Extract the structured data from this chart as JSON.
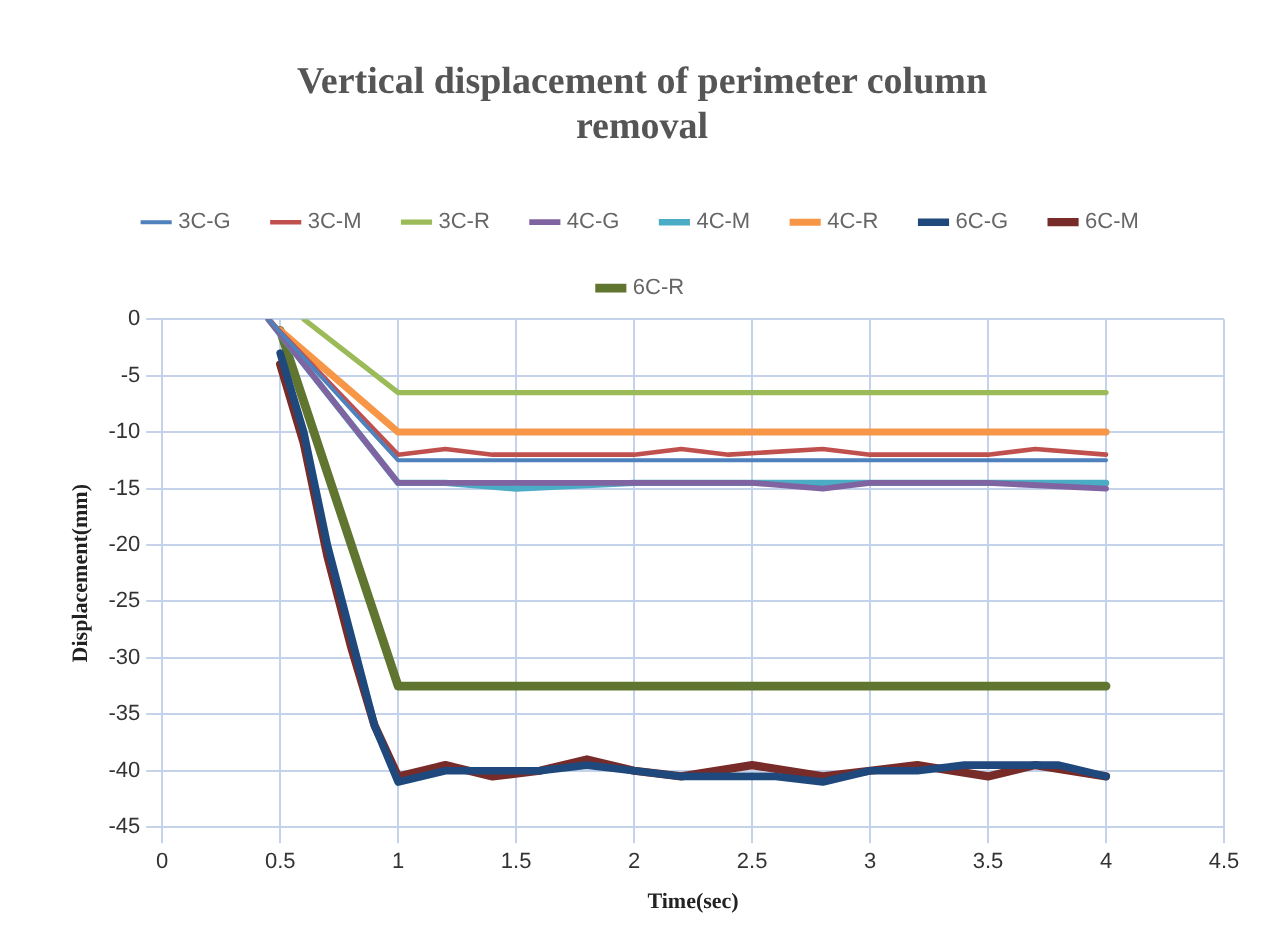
{
  "chart_data": {
    "type": "line",
    "title": "Vertical displacement of perimeter column removal",
    "xlabel": "Time(sec)",
    "ylabel": "Displacement(mm)",
    "xlim": [
      0,
      4.5
    ],
    "xticks": [
      0,
      0.5,
      1,
      1.5,
      2,
      2.5,
      3,
      3.5,
      4,
      4.5
    ],
    "ylim": [
      -45,
      0
    ],
    "yticks": [
      -45,
      -40,
      -35,
      -30,
      -25,
      -20,
      -15,
      -10,
      -5,
      0
    ],
    "grid": true,
    "legend": "top",
    "marker": "none",
    "line_style": "solid",
    "series": [
      {
        "name": "3C-G",
        "color": "#4f81bd",
        "x": [
          0.45,
          1,
          1.4,
          1.8,
          2.2,
          2.6,
          3,
          3.4,
          3.8,
          4
        ],
        "values": [
          0,
          -12.5,
          -12.5,
          -12.5,
          -12.5,
          -12.5,
          -12.5,
          -12.5,
          -12.5,
          -12.5
        ]
      },
      {
        "name": "3C-M",
        "color": "#c0504d",
        "x": [
          0.45,
          1,
          1.2,
          1.4,
          2,
          2.2,
          2.4,
          2.8,
          3,
          3.5,
          3.7,
          4
        ],
        "values": [
          0,
          -12,
          -11.5,
          -12,
          -12,
          -11.5,
          -12,
          -11.5,
          -12,
          -12,
          -11.5,
          -12
        ]
      },
      {
        "name": "3C-R",
        "color": "#9bbb59",
        "x": [
          0.6,
          1,
          2,
          3,
          4
        ],
        "values": [
          0,
          -6.5,
          -6.5,
          -6.5,
          -6.5
        ]
      },
      {
        "name": "4C-G",
        "color": "#8064a2",
        "x": [
          0.45,
          1,
          1.5,
          2,
          2.5,
          2.8,
          3,
          3.5,
          4
        ],
        "values": [
          0,
          -14.5,
          -14.5,
          -14.5,
          -14.5,
          -15,
          -14.5,
          -14.5,
          -15
        ]
      },
      {
        "name": "4C-M",
        "color": "#4bacc6",
        "x": [
          0.45,
          1,
          1.2,
          1.5,
          2,
          2.2,
          2.5,
          2.8,
          3,
          3.5,
          4
        ],
        "values": [
          0,
          -14.5,
          -14.5,
          -15,
          -14.5,
          -14.5,
          -14.5,
          -14.5,
          -14.5,
          -14.5,
          -14.5
        ]
      },
      {
        "name": "4C-R",
        "color": "#f79646",
        "x": [
          0.5,
          1,
          2,
          3,
          4
        ],
        "values": [
          -1,
          -10,
          -10,
          -10,
          -10
        ]
      },
      {
        "name": "6C-G",
        "color": "#1f497d",
        "x": [
          0.5,
          0.6,
          0.7,
          0.8,
          0.9,
          1,
          1.2,
          1.4,
          1.6,
          1.8,
          2,
          2.2,
          2.4,
          2.6,
          2.8,
          3,
          3.2,
          3.4,
          3.6,
          3.8,
          4
        ],
        "values": [
          -3,
          -10,
          -20,
          -28,
          -36,
          -41,
          -40,
          -40,
          -40,
          -39.5,
          -40,
          -40.5,
          -40.5,
          -40.5,
          -41,
          -40,
          -40,
          -39.5,
          -39.5,
          -39.5,
          -40.5
        ]
      },
      {
        "name": "6C-M",
        "color": "#772c2a",
        "x": [
          0.5,
          0.6,
          0.7,
          0.8,
          0.9,
          1,
          1.2,
          1.4,
          1.6,
          1.8,
          2,
          2.2,
          2.5,
          2.8,
          3,
          3.2,
          3.5,
          3.7,
          4
        ],
        "values": [
          -4,
          -11,
          -21,
          -29,
          -36,
          -40.5,
          -39.5,
          -40.5,
          -40,
          -39,
          -40,
          -40.5,
          -39.5,
          -40.5,
          -40,
          -39.5,
          -40.5,
          -39.5,
          -40.5
        ]
      },
      {
        "name": "6C-R",
        "color": "#5f7530",
        "x": [
          0.5,
          1,
          2,
          3,
          4
        ],
        "values": [
          -1,
          -32.5,
          -32.5,
          -32.5,
          -32.5
        ]
      }
    ]
  }
}
